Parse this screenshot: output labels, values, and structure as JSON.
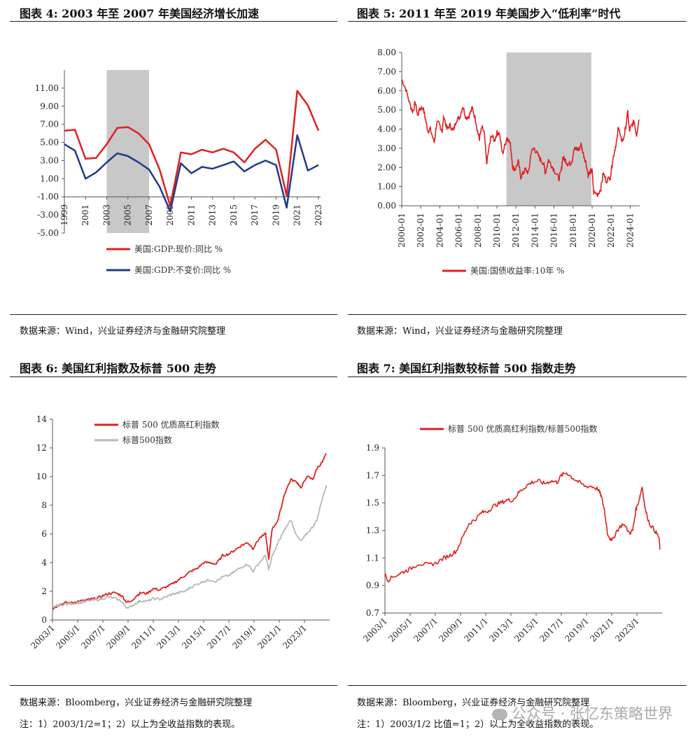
{
  "figures": [
    {
      "title": "图表 4:   2003 年至 2007 年美国经济增长加速",
      "source": "数据来源：Wind，兴业证券经济与金融研究院整理",
      "note": ""
    },
    {
      "title": "图表 5:   2011 年至 2019 年美国步入“低利率”时代",
      "source": "数据来源：Wind，兴业证券经济与金融研究院整理",
      "note": ""
    },
    {
      "title": "图表 6:  美国红利指数及标普 500 走势",
      "source": "数据来源：Bloomberg，兴业证券经济与金融研究院整理",
      "note": "注：1）2003/1/2=1；2）以上为全收益指数的表现。"
    },
    {
      "title": "图表 7:    美国红利指数较标普 500 指数走势",
      "source": "数据来源：Bloomberg，兴业证券经济与金融研究院整理",
      "note": "注：1）2003/1/2 比值=1；2）以上为全收益指数的表现。"
    }
  ],
  "watermark": "公众号 · 张忆东策略世界",
  "chart_data": [
    {
      "type": "line",
      "x": [
        1999,
        2000,
        2001,
        2002,
        2003,
        2004,
        2005,
        2006,
        2007,
        2008,
        2009,
        2010,
        2011,
        2012,
        2013,
        2014,
        2015,
        2016,
        2017,
        2018,
        2019,
        2020,
        2021,
        2022,
        2023
      ],
      "series": [
        {
          "name": "美国:GDP:现价:同比 %",
          "color": "#e02020",
          "values": [
            6.3,
            6.4,
            3.2,
            3.3,
            4.8,
            6.6,
            6.7,
            6.0,
            4.8,
            2.0,
            -2.0,
            3.9,
            3.7,
            4.2,
            3.9,
            4.3,
            3.9,
            2.8,
            4.3,
            5.3,
            4.2,
            -0.9,
            10.7,
            9.1,
            6.3
          ]
        },
        {
          "name": "美国:GDP:不变价:同比 %",
          "color": "#1f3a8a",
          "values": [
            4.8,
            4.1,
            1.0,
            1.7,
            2.8,
            3.8,
            3.5,
            2.8,
            2.0,
            0.1,
            -2.6,
            2.7,
            1.6,
            2.3,
            2.1,
            2.5,
            2.9,
            1.8,
            2.5,
            3.0,
            2.5,
            -2.2,
            5.8,
            1.9,
            2.5
          ]
        }
      ],
      "ylim": [
        -5,
        13
      ],
      "yticks": [
        "11.00",
        "9.00",
        "7.00",
        "5.00",
        "3.00",
        "1.00",
        "-1.00",
        "-3.00",
        "-5.00"
      ],
      "xticks": [
        "1999",
        "2001",
        "2003",
        "2005",
        "2007",
        "2009",
        "2011",
        "2013",
        "2015",
        "2017",
        "2019",
        "2021",
        "2023"
      ],
      "shade": [
        2003,
        2007
      ]
    },
    {
      "type": "line",
      "x": [
        "2000-01",
        "2000-06",
        "2000-12",
        "2001-03",
        "2001-06",
        "2001-09",
        "2001-12",
        "2002-04",
        "2002-07",
        "2002-10",
        "2003-01",
        "2003-06",
        "2003-09",
        "2003-12",
        "2004-04",
        "2004-06",
        "2004-10",
        "2005-02",
        "2005-06",
        "2005-10",
        "2006-02",
        "2006-06",
        "2006-10",
        "2007-02",
        "2007-06",
        "2007-10",
        "2008-01",
        "2008-03",
        "2008-06",
        "2008-09",
        "2008-12",
        "2009-03",
        "2009-06",
        "2009-10",
        "2010-01",
        "2010-04",
        "2010-08",
        "2010-12",
        "2011-02",
        "2011-06",
        "2011-09",
        "2011-12",
        "2012-04",
        "2012-07",
        "2012-10",
        "2013-01",
        "2013-05",
        "2013-08",
        "2013-12",
        "2014-04",
        "2014-08",
        "2014-12",
        "2015-02",
        "2015-06",
        "2015-10",
        "2016-02",
        "2016-07",
        "2016-10",
        "2016-12",
        "2017-03",
        "2017-06",
        "2017-09",
        "2017-12",
        "2018-02",
        "2018-05",
        "2018-08",
        "2018-11",
        "2019-02",
        "2019-05",
        "2019-08",
        "2019-11",
        "2020-01",
        "2020-03",
        "2020-08",
        "2020-12",
        "2021-03",
        "2021-07",
        "2021-12",
        "2022-03",
        "2022-06",
        "2022-09",
        "2022-10",
        "2023-01",
        "2023-04",
        "2023-07",
        "2023-10",
        "2023-12",
        "2024-03",
        "2024-06",
        "2024-09",
        "2024-12"
      ],
      "series": [
        {
          "name": "美国:国债收益率:10年 %",
          "color": "#e02020",
          "values": [
            6.6,
            6.1,
            5.2,
            4.9,
            5.4,
            4.7,
            5.1,
            5.1,
            4.5,
            3.9,
            4.0,
            3.3,
            4.3,
            4.3,
            3.9,
            4.7,
            4.0,
            4.2,
            3.9,
            4.5,
            4.6,
            5.2,
            4.6,
            4.7,
            5.1,
            4.5,
            3.8,
            3.5,
            4.1,
            3.8,
            2.2,
            3.0,
            3.7,
            3.4,
            3.8,
            3.8,
            2.7,
            3.3,
            3.6,
            3.2,
            2.0,
            1.9,
            2.3,
            1.5,
            1.7,
            1.9,
            1.7,
            2.8,
            3.0,
            2.7,
            2.4,
            2.2,
            1.7,
            2.4,
            2.1,
            1.8,
            1.4,
            1.8,
            2.5,
            2.4,
            2.2,
            2.2,
            2.4,
            2.9,
            3.0,
            2.9,
            3.2,
            2.7,
            2.3,
            1.6,
            1.8,
            1.8,
            0.7,
            0.6,
            0.9,
            1.7,
            1.3,
            1.5,
            2.4,
            3.0,
            3.6,
            4.2,
            3.5,
            3.4,
            4.0,
            4.9,
            3.9,
            4.2,
            4.4,
            3.7,
            4.5
          ]
        }
      ],
      "ylim": [
        0,
        8
      ],
      "yticks": [
        "8.00",
        "7.00",
        "6.00",
        "5.00",
        "4.00",
        "3.00",
        "2.00",
        "1.00",
        "0.00"
      ],
      "xticks": [
        "2000-01",
        "2002-01",
        "2004-01",
        "2006-01",
        "2008-01",
        "2010-01",
        "2012-01",
        "2014-01",
        "2016-01",
        "2018-01",
        "2020-01",
        "2022-01",
        "2024-01"
      ],
      "shade": [
        "2011-01",
        "2019-12"
      ]
    },
    {
      "type": "line",
      "x": [
        "2003/1",
        "2003/7",
        "2004/1",
        "2004/7",
        "2005/1",
        "2005/7",
        "2006/1",
        "2006/7",
        "2007/1",
        "2007/7",
        "2008/1",
        "2008/7",
        "2008/11",
        "2009/3",
        "2009/9",
        "2010/1",
        "2010/7",
        "2011/1",
        "2011/7",
        "2012/1",
        "2012/7",
        "2013/1",
        "2013/7",
        "2014/1",
        "2014/7",
        "2015/1",
        "2015/7",
        "2016/1",
        "2016/7",
        "2017/1",
        "2017/7",
        "2018/1",
        "2018/7",
        "2018/12",
        "2019/6",
        "2019/12",
        "2020/3",
        "2020/6",
        "2020/12",
        "2021/6",
        "2021/12",
        "2022/6",
        "2022/10",
        "2023/3",
        "2023/9",
        "2024/1",
        "2024/6",
        "2024/10"
      ],
      "series": [
        {
          "name": "标普 500 优质高红利指数",
          "color": "#e02020",
          "values": [
            0.8,
            1.05,
            1.2,
            1.2,
            1.3,
            1.35,
            1.45,
            1.5,
            1.7,
            1.85,
            1.9,
            1.7,
            1.3,
            1.25,
            1.7,
            1.9,
            1.85,
            2.2,
            2.1,
            2.3,
            2.5,
            2.8,
            3.1,
            3.4,
            3.6,
            4.0,
            4.0,
            3.9,
            4.5,
            4.6,
            4.9,
            5.2,
            5.4,
            5.0,
            5.7,
            6.0,
            4.2,
            6.3,
            7.0,
            8.8,
            9.8,
            9.6,
            9.2,
            10.0,
            9.8,
            10.6,
            11.0,
            11.6
          ]
        },
        {
          "name": "标普500指数",
          "color": "#b8b8b8",
          "values": [
            0.9,
            1.05,
            1.1,
            1.15,
            1.2,
            1.25,
            1.35,
            1.4,
            1.5,
            1.6,
            1.5,
            1.3,
            0.9,
            0.9,
            1.2,
            1.35,
            1.3,
            1.5,
            1.45,
            1.6,
            1.8,
            1.9,
            2.0,
            2.3,
            2.5,
            2.7,
            2.8,
            2.7,
            3.0,
            3.1,
            3.4,
            3.7,
            3.9,
            3.4,
            4.0,
            4.5,
            3.5,
            4.4,
            5.4,
            6.3,
            7.0,
            5.8,
            5.5,
            6.0,
            6.5,
            7.0,
            8.5,
            9.4
          ]
        }
      ],
      "ylim": [
        0,
        14
      ],
      "yticks": [
        "14",
        "12",
        "10",
        "8",
        "6",
        "4",
        "2",
        "0"
      ],
      "xticks": [
        "2003/1",
        "2005/1",
        "2007/1",
        "2009/1",
        "2011/1",
        "2013/1",
        "2015/1",
        "2017/1",
        "2019/1",
        "2021/1",
        "2023/1"
      ]
    },
    {
      "type": "line",
      "x": [
        "2003/1",
        "2003/4",
        "2004/1",
        "2004/7",
        "2005/1",
        "2005/9",
        "2006/6",
        "2007/1",
        "2007/9",
        "2008/3",
        "2008/9",
        "2009/3",
        "2009/9",
        "2010/3",
        "2010/9",
        "2011/3",
        "2011/9",
        "2012/3",
        "2012/9",
        "2013/3",
        "2013/9",
        "2014/3",
        "2014/9",
        "2015/3",
        "2015/9",
        "2016/3",
        "2016/9",
        "2017/1",
        "2017/6",
        "2017/12",
        "2018/6",
        "2018/12",
        "2019/6",
        "2019/12",
        "2020/3",
        "2020/6",
        "2020/9",
        "2021/1",
        "2021/6",
        "2021/12",
        "2022/6",
        "2022/9",
        "2022/12",
        "2023/3",
        "2023/6",
        "2023/9",
        "2024/1",
        "2024/6",
        "2024/10",
        "2024/11"
      ],
      "series": [
        {
          "name": "标普 500 优质高红利指数/标普500指数",
          "color": "#e02020",
          "values": [
            0.98,
            0.94,
            0.98,
            1.0,
            1.02,
            1.06,
            1.05,
            1.06,
            1.1,
            1.12,
            1.15,
            1.25,
            1.35,
            1.38,
            1.43,
            1.44,
            1.48,
            1.5,
            1.52,
            1.52,
            1.58,
            1.62,
            1.65,
            1.66,
            1.64,
            1.66,
            1.65,
            1.7,
            1.72,
            1.68,
            1.65,
            1.62,
            1.62,
            1.6,
            1.55,
            1.45,
            1.28,
            1.22,
            1.3,
            1.35,
            1.28,
            1.3,
            1.45,
            1.52,
            1.62,
            1.45,
            1.35,
            1.3,
            1.25,
            1.16
          ]
        }
      ],
      "ylim": [
        0.7,
        1.9
      ],
      "yticks": [
        "1.9",
        "1.7",
        "1.5",
        "1.3",
        "1.1",
        "0.9",
        "0.7"
      ],
      "xticks": [
        "2003/1",
        "2005/1",
        "2007/1",
        "2009/1",
        "2011/1",
        "2013/1",
        "2015/1",
        "2017/1",
        "2019/1",
        "2021/1",
        "2023/1"
      ]
    }
  ]
}
